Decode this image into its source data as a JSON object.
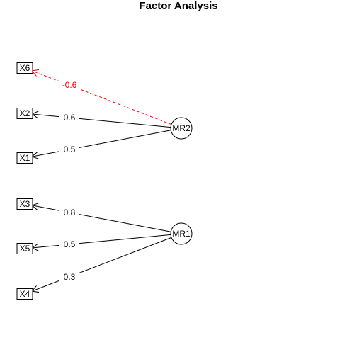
{
  "title": "Factor Analysis",
  "variables": [
    "X6",
    "X2",
    "X1",
    "X3",
    "X5",
    "X4"
  ],
  "factors": [
    "MR2",
    "MR1"
  ],
  "loadings": [
    {
      "from": "MR2",
      "to": "X6",
      "value": "-0.6",
      "color": "#ff0000",
      "dashed": true
    },
    {
      "from": "MR2",
      "to": "X2",
      "value": "0.6",
      "color": "#000000",
      "dashed": false
    },
    {
      "from": "MR2",
      "to": "X1",
      "value": "0.5",
      "color": "#000000",
      "dashed": false
    },
    {
      "from": "MR1",
      "to": "X3",
      "value": "0.8",
      "color": "#000000",
      "dashed": false
    },
    {
      "from": "MR1",
      "to": "X5",
      "value": "0.5",
      "color": "#000000",
      "dashed": false
    },
    {
      "from": "MR1",
      "to": "X4",
      "value": "0.3",
      "color": "#000000",
      "dashed": false
    }
  ]
}
